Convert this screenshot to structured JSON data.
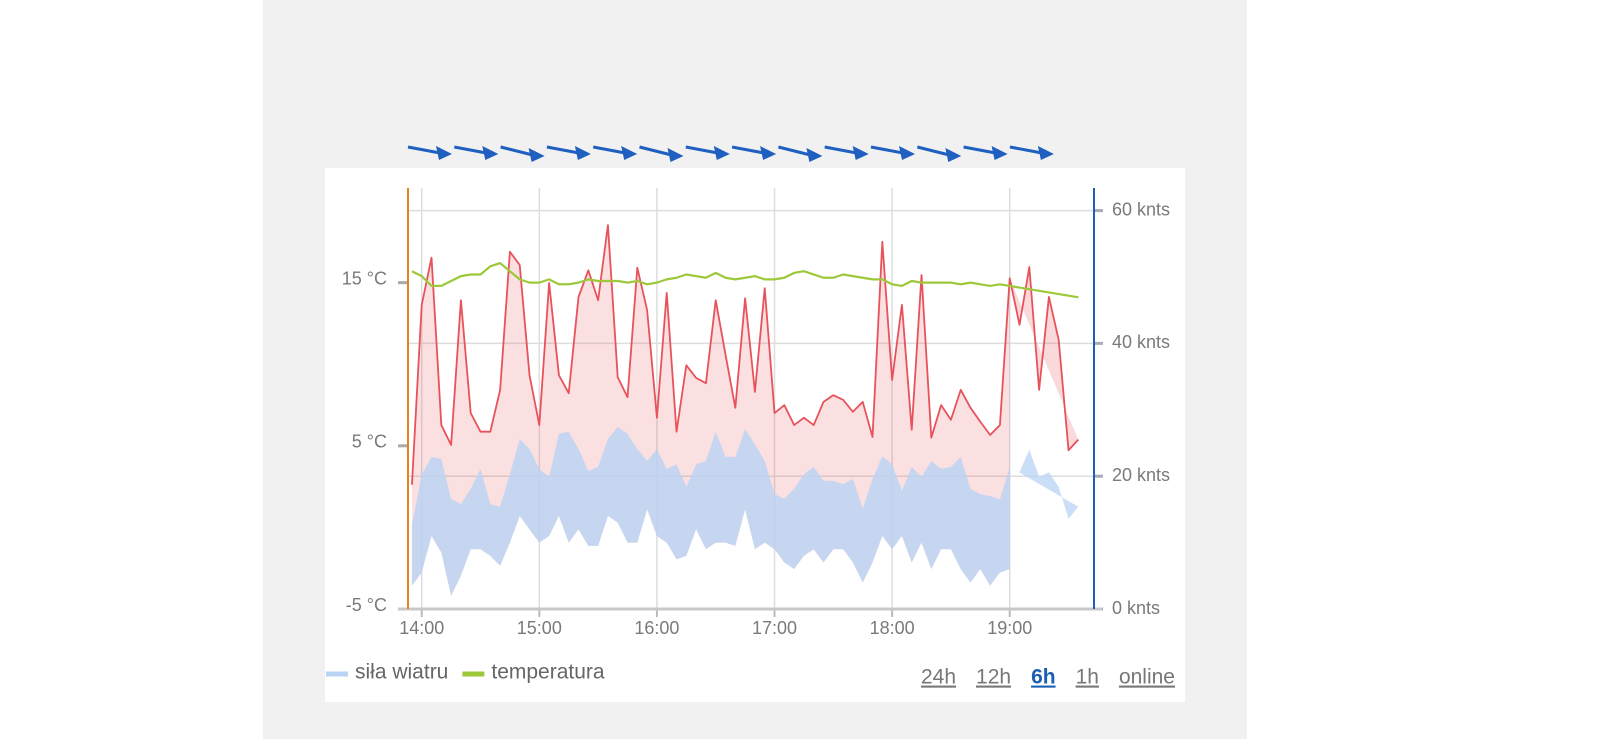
{
  "chart_data": {
    "type": "line",
    "x": [
      "13:55",
      "14:00",
      "14:05",
      "14:10",
      "14:15",
      "14:20",
      "14:25",
      "14:30",
      "14:35",
      "14:40",
      "14:45",
      "14:50",
      "14:55",
      "15:00",
      "15:05",
      "15:10",
      "15:15",
      "15:20",
      "15:25",
      "15:30",
      "15:35",
      "15:40",
      "15:45",
      "15:50",
      "15:55",
      "16:00",
      "16:05",
      "16:10",
      "16:15",
      "16:20",
      "16:25",
      "16:30",
      "16:35",
      "16:40",
      "16:45",
      "16:50",
      "16:55",
      "17:00",
      "17:05",
      "17:10",
      "17:15",
      "17:20",
      "17:25",
      "17:30",
      "17:35",
      "17:40",
      "17:45",
      "17:50",
      "17:55",
      "18:00",
      "18:05",
      "18:10",
      "18:15",
      "18:20",
      "18:25",
      "18:30",
      "18:35",
      "18:40",
      "18:45",
      "18:50",
      "18:55",
      "19:00",
      "19:05",
      "19:10",
      "19:15",
      "19:20",
      "19:25",
      "19:30",
      "19:35"
    ],
    "xlim": [
      "13:53",
      "19:43"
    ],
    "xticks": [
      "14:00",
      "15:00",
      "16:00",
      "17:00",
      "18:00",
      "19:00"
    ],
    "ylim": [
      -5,
      20.8
    ],
    "yticks": [
      {
        "value": -5,
        "label": "-5 °C"
      },
      {
        "value": 5,
        "label": "5 °C"
      },
      {
        "value": 15,
        "label": "15 °C"
      }
    ],
    "y2lim": [
      0,
      63.4
    ],
    "y2ticks": [
      {
        "value": 0,
        "label": "0 knts"
      },
      {
        "value": 20,
        "label": "20 knts"
      },
      {
        "value": 40,
        "label": "40 knts"
      },
      {
        "value": 60,
        "label": "60 knts"
      }
    ],
    "grid": true,
    "y_axis_color": "#e8821e",
    "y2_axis_color": "#1f5fb0",
    "series": [
      {
        "name": "siła wiatru",
        "color": "#b9d3f4",
        "axis": "y2",
        "values": [
          12.6,
          20.3,
          22.9,
          22.6,
          16.6,
          15.8,
          18.1,
          21.1,
          15.8,
          15.4,
          20.3,
          25.6,
          24.1,
          21.1,
          19.9,
          26.4,
          26.7,
          24.1,
          20.8,
          21.4,
          25.6,
          27.4,
          26.4,
          24.1,
          22.3,
          24.1,
          21.1,
          21.8,
          18.4,
          21.8,
          22.3,
          26.7,
          22.9,
          22.9,
          27.1,
          24.8,
          22.3,
          17.3,
          16.6,
          18.1,
          20.3,
          21.4,
          19.3,
          19.3,
          18.8,
          19.6,
          15.1,
          19.6,
          23.0,
          21.8,
          17.8,
          21.4,
          19.9,
          22.3,
          21.1,
          21.4,
          22.9,
          18.1,
          17.3,
          17.0,
          16.5,
          21.4,
          20.6,
          24.0,
          19.9,
          20.6,
          18.4,
          13.6,
          15.4
        ],
        "low": [
          3.5,
          5.5,
          11,
          8.5,
          2,
          5,
          9,
          9,
          8,
          6.5,
          10,
          14,
          12,
          10,
          11,
          14,
          10,
          12,
          9.5,
          9.5,
          14,
          13,
          10,
          10,
          15,
          11,
          10,
          7.5,
          8,
          12,
          9,
          10,
          10,
          9.5,
          15,
          9,
          10,
          9,
          7,
          6,
          8,
          9,
          7,
          9,
          9,
          7,
          4,
          7,
          11,
          9,
          11,
          7,
          10,
          6,
          9,
          9,
          6,
          4,
          6,
          3.5,
          5.5,
          6,
          null,
          null,
          null,
          null,
          null,
          null,
          null
        ]
      },
      {
        "color": "#e8525a",
        "axis": "y2",
        "values": [
          18.7,
          45.8,
          52.9,
          27.7,
          24.7,
          46.5,
          29.5,
          26.7,
          26.7,
          33,
          53.8,
          51.8,
          35.2,
          27.7,
          49.1,
          35.2,
          32.5,
          47,
          51,
          46.5,
          57.8,
          34.9,
          31.9,
          51.4,
          45,
          28.8,
          47.6,
          26.7,
          36.7,
          34.8,
          34,
          46.5,
          38.3,
          30.3,
          46.8,
          32.7,
          48.3,
          29.5,
          30.7,
          27.7,
          28.8,
          27.7,
          31.2,
          32.2,
          31.5,
          29.7,
          31.2,
          25.9,
          55.3,
          34.5,
          45.8,
          27,
          50.3,
          25.8,
          30.7,
          28.5,
          33,
          30.3,
          28.2,
          26.2,
          27.7,
          49.8,
          42.8,
          51.5,
          33,
          47,
          40.5,
          23.9,
          25.5
        ]
      },
      {
        "name": "temperatura",
        "color": "#9cc83a",
        "axis": "y",
        "values": [
          15.7,
          15.4,
          14.8,
          14.8,
          15.1,
          15.4,
          15.5,
          15.5,
          16.0,
          16.2,
          15.7,
          15.2,
          15.0,
          15.0,
          15.2,
          14.9,
          14.9,
          15.0,
          15.2,
          15.1,
          15.1,
          15.1,
          15.0,
          15.1,
          14.9,
          15.0,
          15.2,
          15.3,
          15.5,
          15.4,
          15.3,
          15.6,
          15.3,
          15.2,
          15.3,
          15.4,
          15.2,
          15.2,
          15.3,
          15.6,
          15.7,
          15.5,
          15.3,
          15.3,
          15.5,
          15.4,
          15.3,
          15.2,
          15.2,
          14.9,
          14.8,
          15.1,
          15.0,
          15.0,
          15.0,
          15.0,
          14.9,
          15.0,
          14.9,
          14.8,
          14.9,
          14.8,
          14.7,
          14.6,
          14.5,
          14.4,
          14.3,
          14.2,
          14.1
        ]
      }
    ]
  },
  "range_buttons": [
    "24h",
    "12h",
    "6h",
    "1h",
    "online"
  ],
  "active_range": 2
}
